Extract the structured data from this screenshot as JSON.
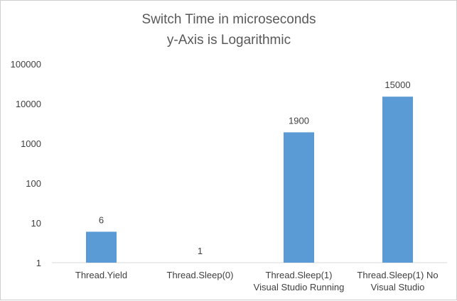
{
  "chart_data": {
    "type": "bar",
    "title": [
      "Switch Time in microseconds",
      "y-Axis is Logarithmic"
    ],
    "xlabel": "",
    "ylabel": "",
    "y_scale": "log",
    "ylim": [
      1,
      100000
    ],
    "y_ticks": [
      1,
      10,
      100,
      1000,
      10000,
      100000
    ],
    "y_tick_labels": [
      "1",
      "10",
      "100",
      "1000",
      "10000",
      "100000"
    ],
    "categories": [
      [
        "Thread.Yield"
      ],
      [
        "Thread.Sleep(0)"
      ],
      [
        "Thread.Sleep(1)",
        "Visual Studio Running"
      ],
      [
        "Thread.Sleep(1) No",
        "Visual Studio"
      ]
    ],
    "values": [
      6,
      1,
      1900,
      15000
    ],
    "data_labels": [
      "6",
      "1",
      "1900",
      "15000"
    ],
    "bar_color": "#5b9bd5",
    "grid": false,
    "legend": "none"
  }
}
